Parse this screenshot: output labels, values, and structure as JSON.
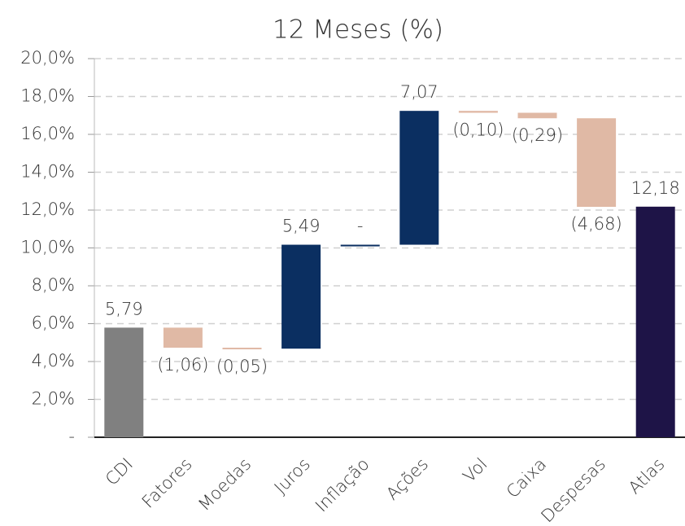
{
  "chart_data": {
    "type": "waterfall",
    "title": "12 Meses (%)",
    "categories": [
      "CDI",
      "Fatores",
      "Moedas",
      "Juros",
      "Inflação",
      "Ações",
      "Vol",
      "Caixa",
      "Despesas",
      "Atlas"
    ],
    "values": [
      5.79,
      -1.06,
      -0.05,
      5.49,
      0,
      7.07,
      -0.1,
      -0.29,
      -4.68,
      12.18
    ],
    "value_labels": [
      "5,79",
      "(1,06)",
      "(0,05)",
      "5,49",
      "-",
      "7,07",
      "(0,10)",
      "(0,29)",
      "(4,68)",
      "12,18"
    ],
    "measure": [
      "absolute",
      "relative",
      "relative",
      "relative",
      "relative",
      "relative",
      "relative",
      "relative",
      "relative",
      "total"
    ],
    "colors": [
      "#808080",
      "#e0b9a5",
      "#e0b9a5",
      "#0b2f61",
      "#0b2f61",
      "#0b2f61",
      "#e0b9a5",
      "#e0b9a5",
      "#e0b9a5",
      "#1e1447"
    ],
    "ylim": [
      0,
      20
    ],
    "yticks": [
      {
        "value": 0,
        "label": "-"
      },
      {
        "value": 2,
        "label": "2,0%"
      },
      {
        "value": 4,
        "label": "4,0%"
      },
      {
        "value": 6,
        "label": "6,0%"
      },
      {
        "value": 8,
        "label": "8,0%"
      },
      {
        "value": 10,
        "label": "10,0%"
      },
      {
        "value": 12,
        "label": "12,0%"
      },
      {
        "value": 14,
        "label": "14,0%"
      },
      {
        "value": 16,
        "label": "16,0%"
      },
      {
        "value": 18,
        "label": "18,0%"
      },
      {
        "value": 20,
        "label": "20,0%"
      }
    ],
    "grid": true
  }
}
